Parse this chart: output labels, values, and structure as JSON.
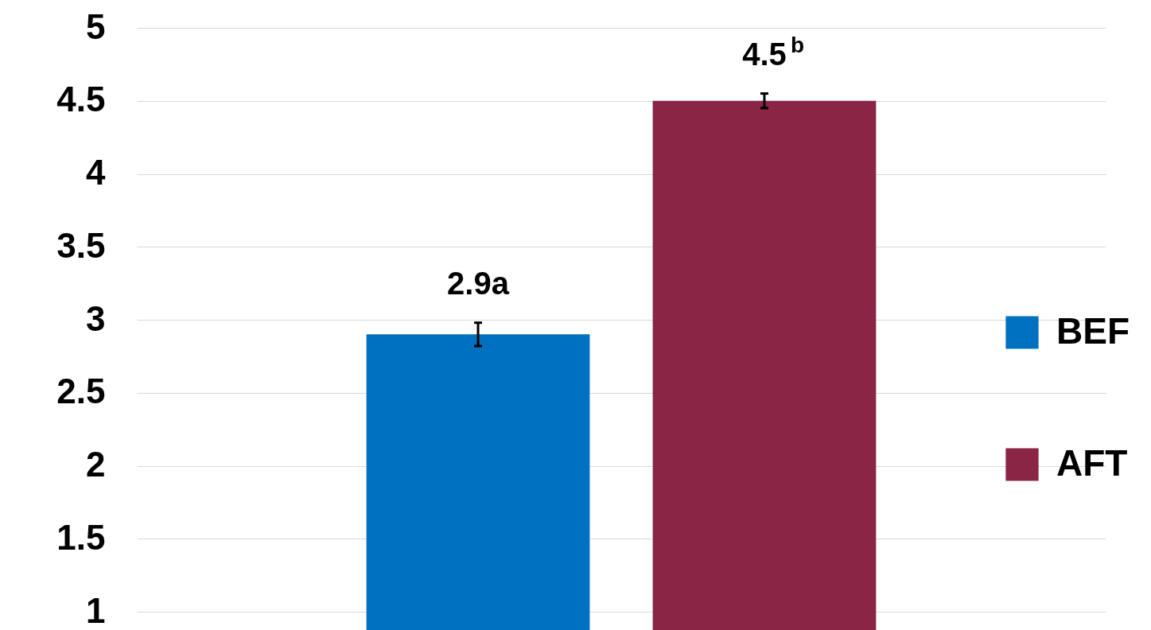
{
  "chart_data": {
    "type": "bar",
    "categories": [
      null
    ],
    "series": [
      {
        "name": "BEF",
        "color": "#0070c0",
        "values": [
          2.9
        ],
        "errors": [
          0.08
        ],
        "value_labels": [
          "2.9a"
        ]
      },
      {
        "name": "AFT",
        "color": "#8b2545",
        "values": [
          4.5
        ],
        "errors": [
          0.05
        ],
        "value_labels": [
          "4.5$^{b}$"
        ]
      }
    ],
    "ylim": [
      1,
      5
    ],
    "yticks": [
      1,
      1.5,
      2,
      2.5,
      3,
      3.5,
      4,
      4.5,
      5
    ],
    "grid": "y",
    "legend": "right"
  }
}
